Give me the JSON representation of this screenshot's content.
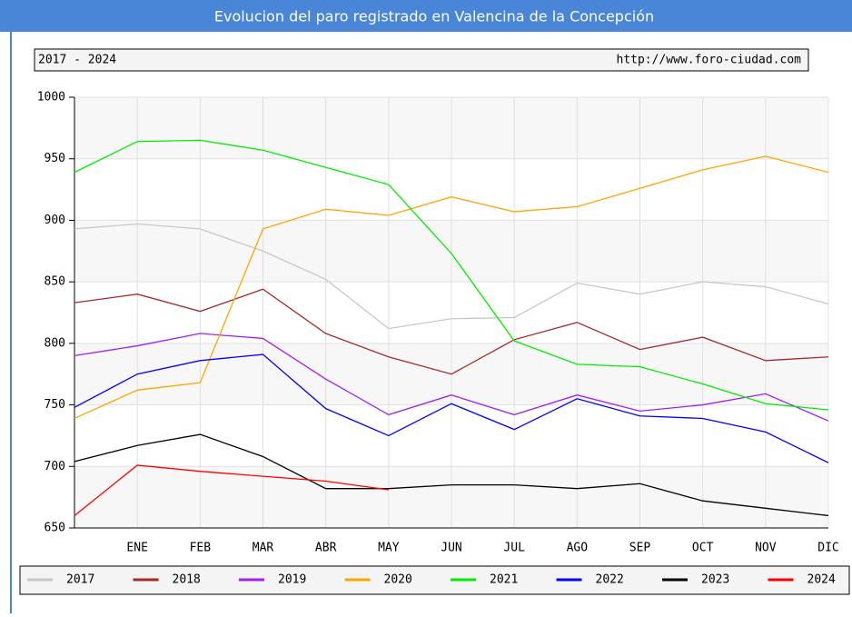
{
  "chart_data": {
    "type": "line",
    "title": "Evolucion del paro registrado en Valencina de la Concepción",
    "subtitle": "2017 - 2024",
    "source": "http://www.foro-ciudad.com",
    "categories": [
      null,
      "ENE",
      "FEB",
      "MAR",
      "ABR",
      "MAY",
      "JUN",
      "JUL",
      "AGO",
      "SEP",
      "OCT",
      "NOV",
      "DIC"
    ],
    "ylim": [
      650,
      1000
    ],
    "yticks": [
      650,
      700,
      750,
      800,
      850,
      900,
      950,
      1000
    ],
    "grid": true,
    "legend": "bottom",
    "series": [
      {
        "name": "2017",
        "color": "#c8c8c8",
        "values": [
          893,
          897,
          893,
          875,
          852,
          812,
          820,
          821,
          849,
          840,
          850,
          846,
          832
        ]
      },
      {
        "name": "2018",
        "color": "#a52a2a",
        "values": [
          833,
          840,
          826,
          844,
          808,
          789,
          775,
          803,
          817,
          795,
          805,
          786,
          789
        ]
      },
      {
        "name": "2019",
        "color": "#a020f0",
        "values": [
          790,
          798,
          808,
          804,
          771,
          742,
          758,
          742,
          758,
          745,
          750,
          759,
          737
        ]
      },
      {
        "name": "2020",
        "color": "#ffa500",
        "values": [
          739,
          762,
          768,
          893,
          909,
          904,
          919,
          907,
          911,
          926,
          941,
          952,
          939
        ]
      },
      {
        "name": "2021",
        "color": "#00ee00",
        "values": [
          939,
          964,
          965,
          957,
          943,
          929,
          873,
          802,
          783,
          781,
          767,
          751,
          746
        ]
      },
      {
        "name": "2022",
        "color": "#0000ff",
        "values": [
          748,
          775,
          786,
          791,
          747,
          725,
          751,
          730,
          755,
          741,
          739,
          728,
          703
        ]
      },
      {
        "name": "2023",
        "color": "#000000",
        "values": [
          704,
          717,
          726,
          708,
          682,
          682,
          685,
          685,
          682,
          686,
          672,
          666,
          660
        ]
      },
      {
        "name": "2024",
        "color": "#ff0000",
        "values": [
          660,
          701,
          696,
          692,
          688,
          681,
          null,
          null,
          null,
          null,
          null,
          null,
          null
        ]
      }
    ]
  }
}
